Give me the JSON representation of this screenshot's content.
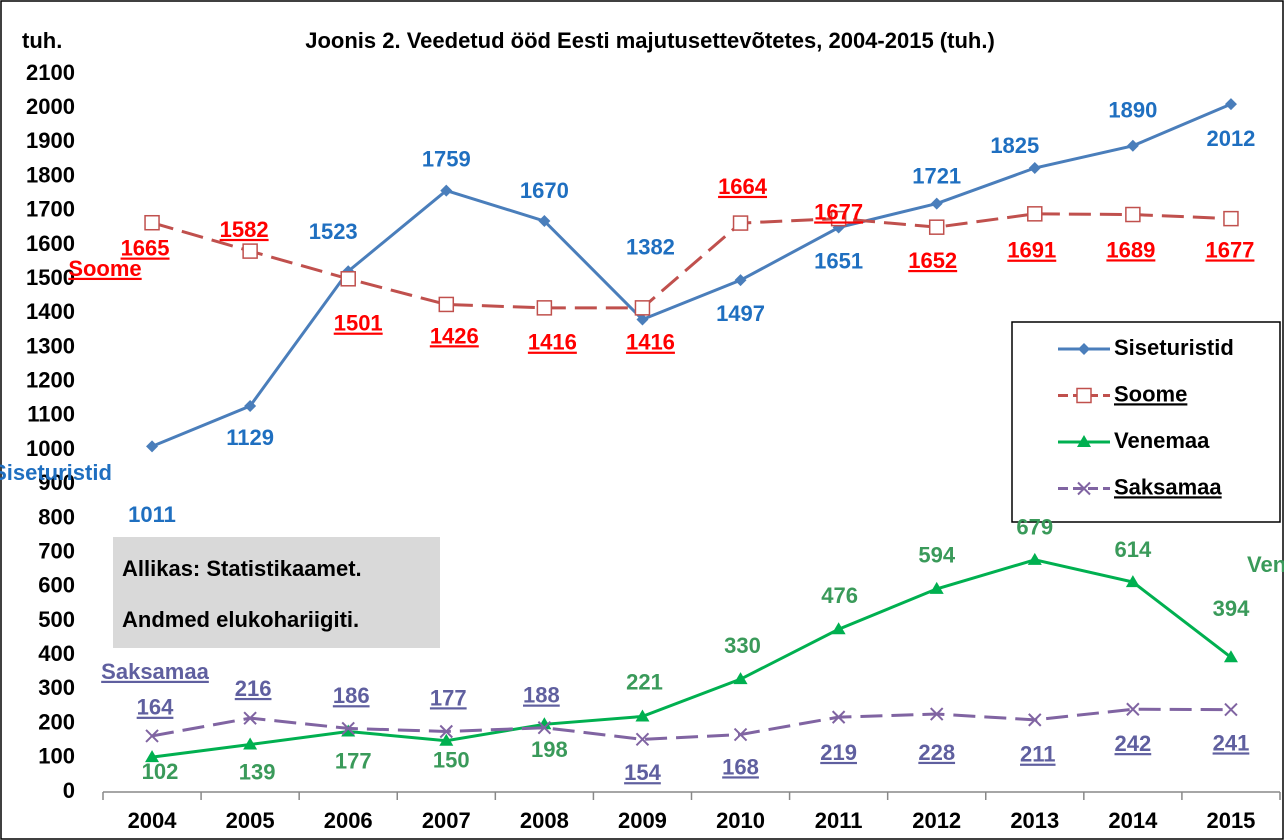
{
  "chart_data": {
    "type": "line",
    "title": "Joonis 2. Veedetud ööd Eesti majutusettevõtetes, 2004-2015 (tuh.)",
    "y_label": "tuh.",
    "note": [
      "Allikas: Statistikaamet.",
      "Andmed elukohariigiti."
    ],
    "categories": [
      "2004",
      "2005",
      "2006",
      "2007",
      "2008",
      "2009",
      "2010",
      "2011",
      "2012",
      "2013",
      "2014",
      "2015"
    ],
    "ylim": [
      0,
      2100
    ],
    "yticks": [
      0,
      100,
      200,
      300,
      400,
      500,
      600,
      700,
      800,
      900,
      1000,
      1100,
      1200,
      1300,
      1400,
      1500,
      1600,
      1700,
      1800,
      1900,
      2000,
      2100
    ],
    "grid": false,
    "legend": "right",
    "series": [
      {
        "name": "Siseturistid",
        "color": "#4a7ebb",
        "label_color": "#1f6fc0",
        "marker": "diamond",
        "dashed": false,
        "underline": false,
        "values": [
          1011,
          1129,
          1523,
          1759,
          1670,
          1382,
          1497,
          1651,
          1721,
          1825,
          1890,
          2012
        ]
      },
      {
        "name": "Soome",
        "color": "#c0504d",
        "label_color": "#ff0000",
        "marker": "square-open",
        "dashed": true,
        "underline": true,
        "values": [
          1665,
          1582,
          1501,
          1426,
          1416,
          1416,
          1664,
          1677,
          1652,
          1691,
          1689,
          1677
        ]
      },
      {
        "name": "Venemaa",
        "color": "#00b050",
        "label_color": "#3a9a5a",
        "marker": "triangle",
        "dashed": false,
        "underline": false,
        "values": [
          102,
          139,
          177,
          150,
          198,
          221,
          330,
          476,
          594,
          679,
          614,
          394
        ]
      },
      {
        "name": "Saksamaa",
        "color": "#8064a2",
        "label_color": "#5f5f9f",
        "marker": "x",
        "dashed": true,
        "underline": true,
        "values": [
          164,
          216,
          186,
          177,
          188,
          154,
          168,
          219,
          228,
          211,
          242,
          241
        ]
      }
    ]
  }
}
